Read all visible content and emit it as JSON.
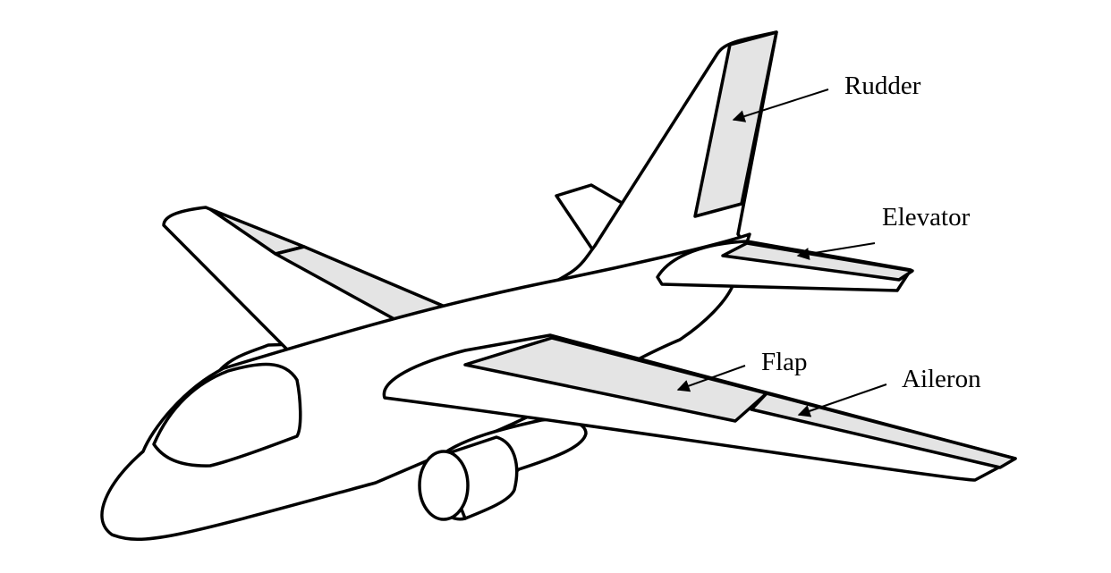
{
  "colors": {
    "outline": "#000000",
    "body_fill": "#ffffff",
    "control_surface_fill": "#e4e4e4"
  },
  "labels": {
    "rudder": "Rudder",
    "elevator": "Elevator",
    "flap": "Flap",
    "aileron": "Aileron"
  }
}
